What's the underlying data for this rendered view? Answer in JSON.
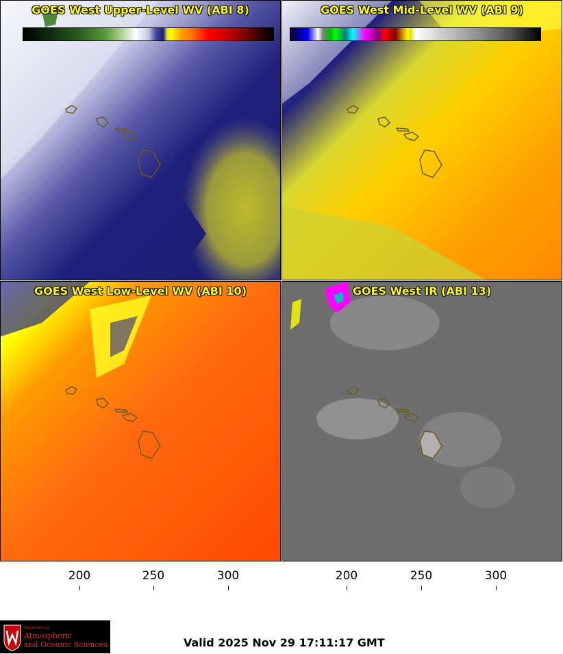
{
  "panels": [
    {
      "title": "GOES West Upper-Level WV (ABI 8)"
    },
    {
      "title": "GOES West Mid-Level WV (ABI 9)"
    },
    {
      "title": "GOES West Low-Level WV (ABI 10)"
    },
    {
      "title": "GOES West IR (ABI 13)"
    }
  ],
  "colorbars": {
    "wv": {
      "ticks": [
        "200",
        "250",
        "300"
      ]
    },
    "ir": {
      "ticks": [
        "200",
        "250",
        "300"
      ]
    }
  },
  "logo": {
    "dept_line": "Department of",
    "name_line1": "Atmospheric",
    "name_line2": "and Oceanic Sciences"
  },
  "valid_time": "Valid 2025 Nov 29 17:11:17 GMT",
  "colors": {
    "title_text": "#ffff00",
    "coastline": "#6b5a1e",
    "logo_red": "#e03030"
  }
}
